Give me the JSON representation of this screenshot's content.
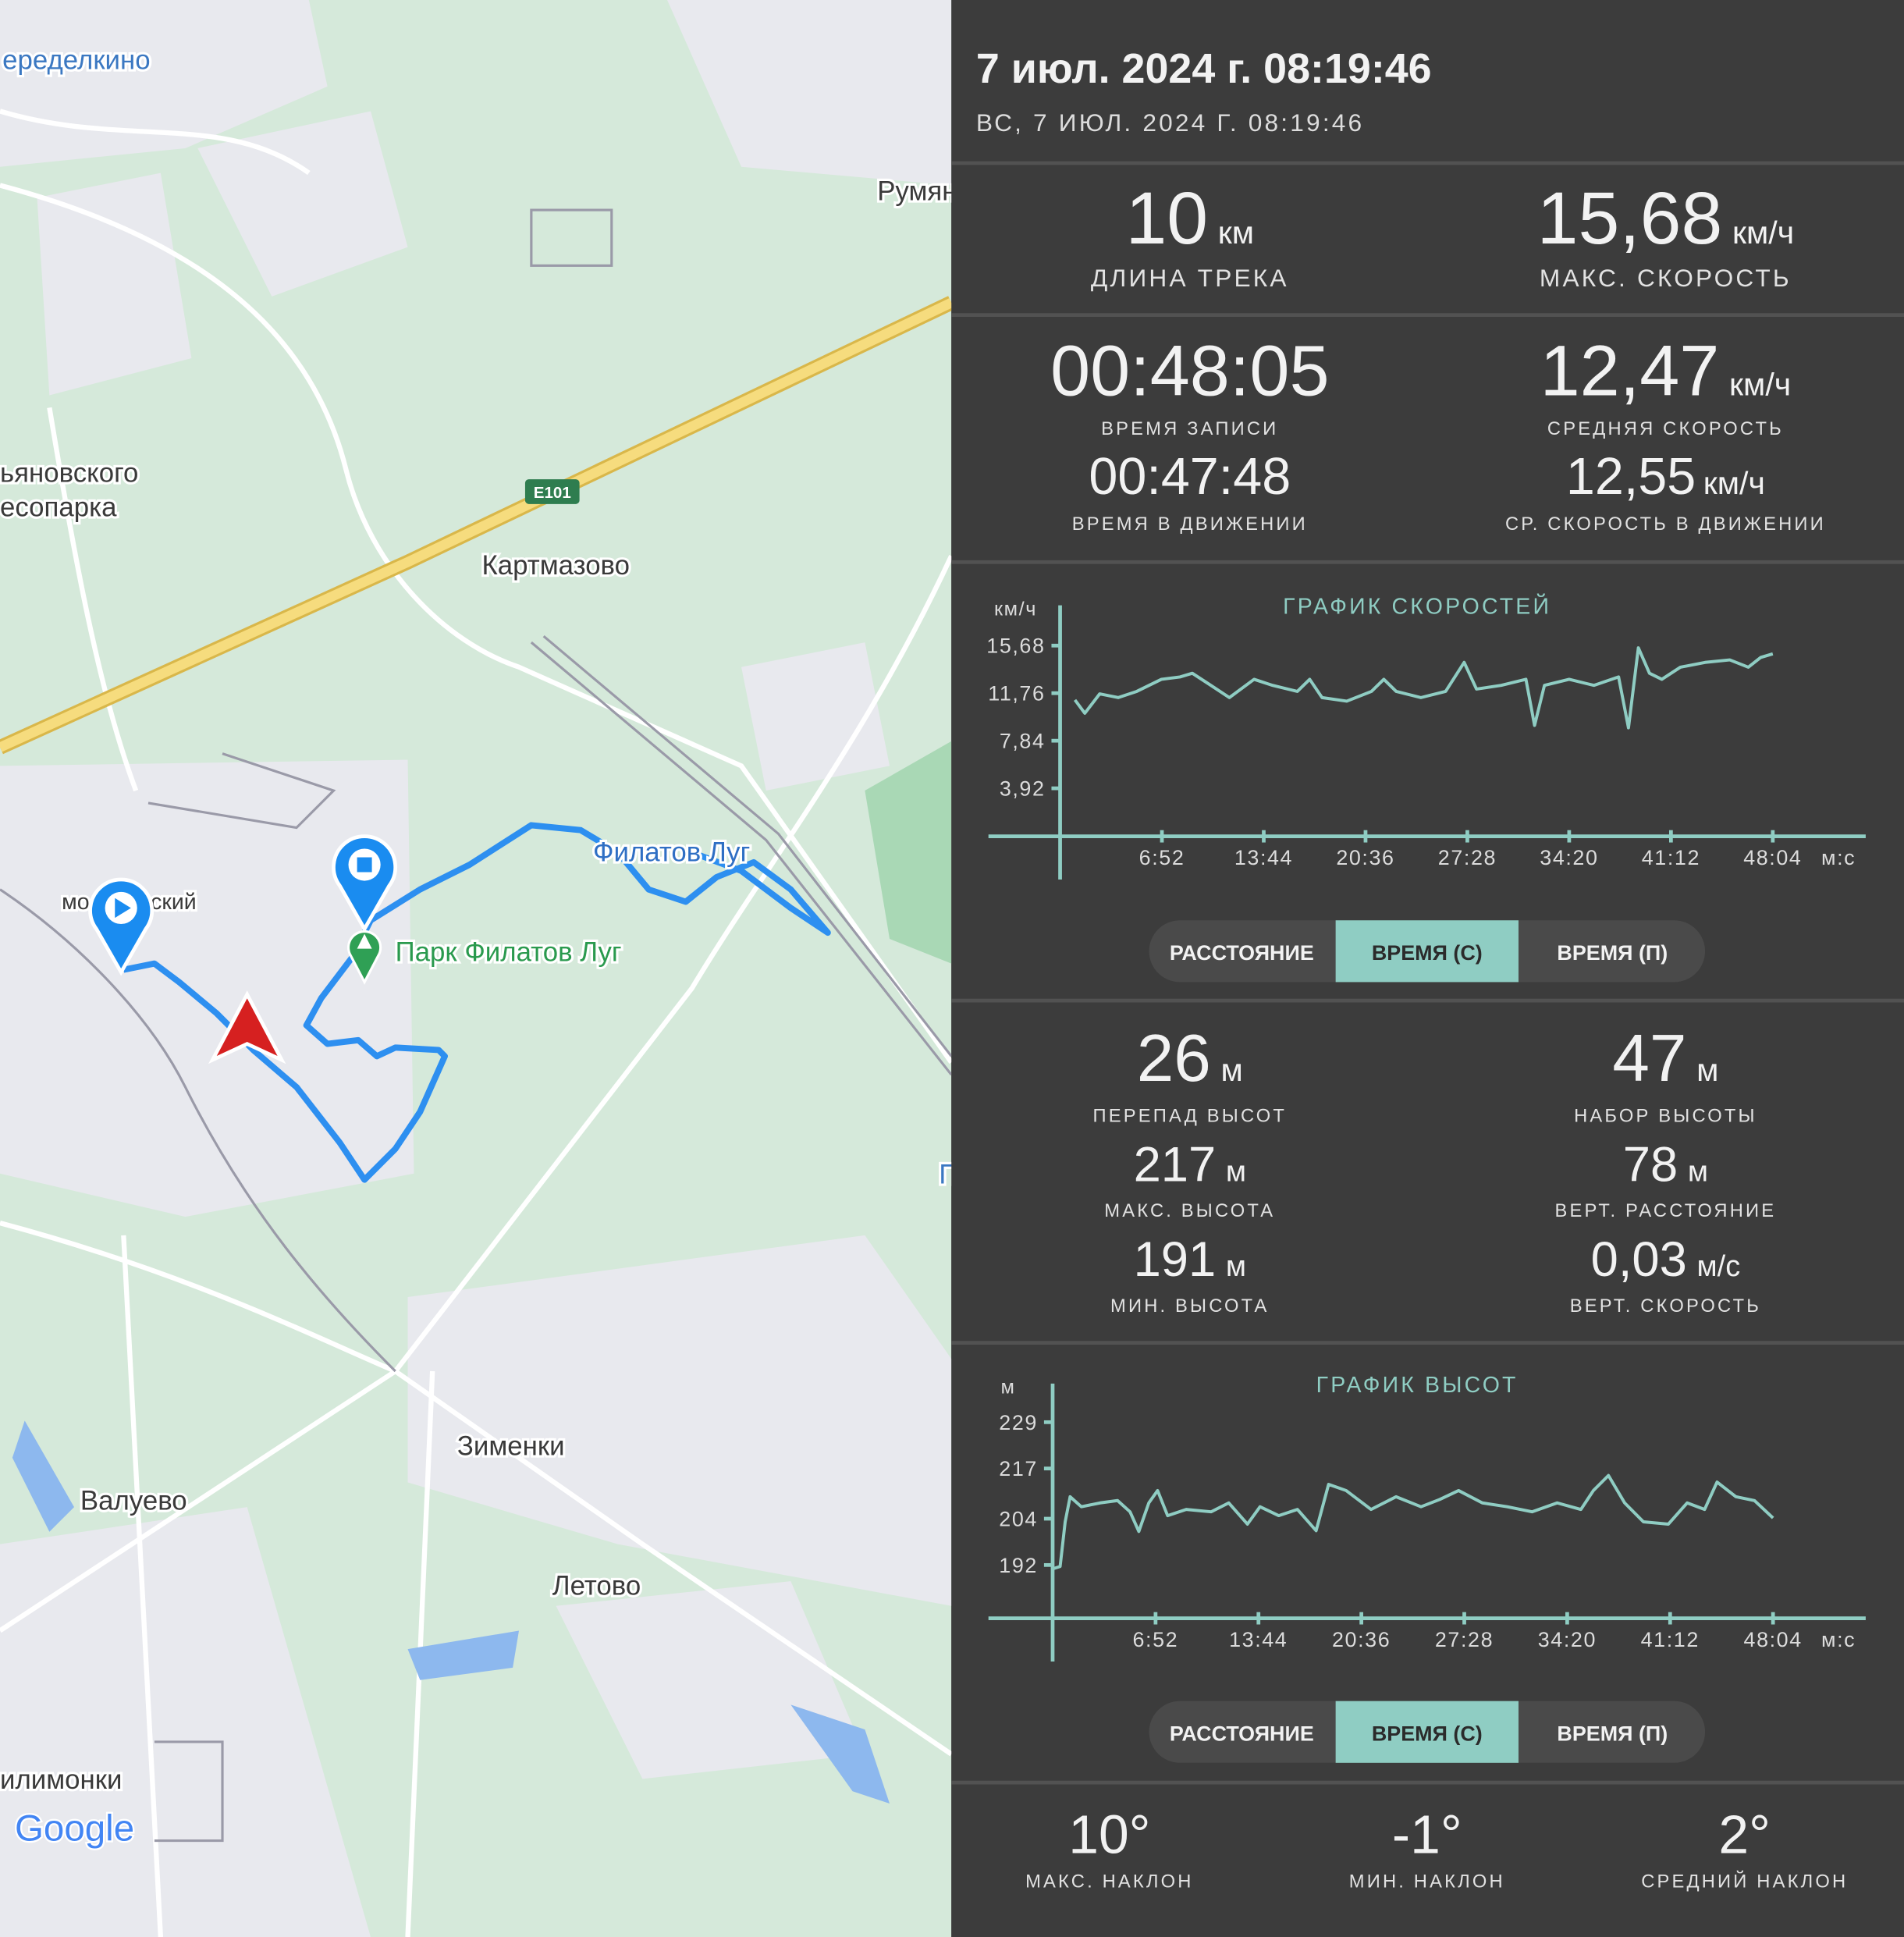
{
  "map": {
    "labels": [
      "еределкино",
      "Румян",
      "ьяновского",
      "есопарка",
      "Картмазово",
      "Филатов Луг",
      "мо",
      "ский",
      "Парк Филатов Луг",
      "Зименки",
      "Валуево",
      "Летово",
      "илимонки",
      "П"
    ],
    "highway": "E101",
    "logo": "Google"
  },
  "header": {
    "title": "7 июл. 2024 г. 08:19:46",
    "subtitle": "ВС, 7 ИЮЛ. 2024 Г. 08:19:46"
  },
  "track_stats": [
    {
      "value": "10",
      "unit": "км",
      "label": "ДЛИНА ТРЕКА"
    },
    {
      "value": "15,68",
      "unit": "км/ч",
      "label": "МАКС. СКОРОСТЬ"
    },
    {
      "value": "00:48:05",
      "label": "ВРЕМЯ ЗАПИСИ"
    },
    {
      "value": "12,47",
      "unit": "км/ч",
      "label": "СРЕДНЯЯ СКОРОСТЬ"
    },
    {
      "value": "00:47:48",
      "label": "ВРЕМЯ В ДВИЖЕНИИ"
    },
    {
      "value": "12,55",
      "unit": "км/ч",
      "label": "СР. СКОРОСТЬ В ДВИЖЕНИИ"
    }
  ],
  "speed_chart": {
    "type": "line",
    "title": "ГРАФИК СКОРОСТЕЙ",
    "y_unit": "км/ч",
    "x_unit": "м:с",
    "color": "#8fcdc3",
    "x": [
      60,
      100,
      160,
      235,
      310,
      410,
      485,
      535,
      610,
      685,
      785,
      860,
      960,
      1010,
      1060,
      1160,
      1260,
      1310,
      1360,
      1460,
      1560,
      1635,
      1685,
      1785,
      1885,
      1920,
      1960,
      2060,
      2160,
      2260,
      2300,
      2340,
      2385,
      2435,
      2510,
      2610,
      2710,
      2785,
      2835,
      2884
    ],
    "values": [
      11.2,
      10.1,
      11.7,
      11.4,
      11.9,
      12.9,
      13.1,
      13.4,
      12.4,
      11.4,
      12.9,
      12.4,
      11.9,
      12.9,
      11.4,
      11.1,
      11.9,
      12.9,
      11.9,
      11.4,
      11.9,
      14.3,
      12.1,
      12.4,
      12.9,
      9.1,
      12.4,
      12.9,
      12.4,
      13.1,
      8.9,
      15.5,
      13.4,
      12.9,
      13.9,
      14.3,
      14.5,
      13.9,
      14.7,
      15.0
    ],
    "xlim": [
      -290,
      3260
    ],
    "ylim": [
      -3.6,
      19
    ],
    "xticks": [
      {
        "value": 412,
        "label": "6:52"
      },
      {
        "value": 824,
        "label": "13:44"
      },
      {
        "value": 1236,
        "label": "20:36"
      },
      {
        "value": 1648,
        "label": "27:28"
      },
      {
        "value": 2060,
        "label": "34:20"
      },
      {
        "value": 2472,
        "label": "41:12"
      },
      {
        "value": 2884,
        "label": "48:04"
      }
    ],
    "yticks": [
      {
        "value": 3.92,
        "label": "3,92"
      },
      {
        "value": 7.84,
        "label": "7,84"
      },
      {
        "value": 11.76,
        "label": "11,76"
      },
      {
        "value": 15.68,
        "label": "15,68"
      }
    ],
    "tabs": [
      "РАССТОЯНИЕ",
      "ВРЕМЯ (С)",
      "ВРЕМЯ (П)"
    ],
    "active_tab": 1
  },
  "elevation_stats": [
    {
      "value": "26",
      "unit": "м",
      "label": "ПЕРЕПАД ВЫСОТ"
    },
    {
      "value": "47",
      "unit": "м",
      "label": "НАБОР ВЫСОТЫ"
    },
    {
      "value": "217",
      "unit": "м",
      "label": "МАКС. ВЫСОТА"
    },
    {
      "value": "78",
      "unit": "м",
      "label": "ВЕРТ. РАССТОЯНИЕ"
    },
    {
      "value": "191",
      "unit": "м",
      "label": "МИН. ВЫСОТА"
    },
    {
      "value": "0,03",
      "unit": "м/с",
      "label": "ВЕРТ. СКОРОСТЬ"
    }
  ],
  "elevation_chart": {
    "type": "line",
    "title": "ГРАФИК ВЫСОТ",
    "y_unit": "м",
    "x_unit": "м:с",
    "color": "#8fcdc3",
    "x": [
      0,
      30,
      50,
      70,
      115,
      190,
      260,
      310,
      345,
      385,
      420,
      460,
      535,
      635,
      705,
      780,
      830,
      905,
      980,
      1055,
      1105,
      1175,
      1275,
      1375,
      1475,
      1550,
      1625,
      1720,
      1820,
      1920,
      2020,
      2115,
      2165,
      2225,
      2290,
      2365,
      2465,
      2540,
      2610,
      2660,
      2735,
      2810,
      2884
    ],
    "values": [
      191,
      191.6,
      203.2,
      209.7,
      207.1,
      208.1,
      208.7,
      205.8,
      200.7,
      208.1,
      211.3,
      204.8,
      206.4,
      205.8,
      208.1,
      202.6,
      207.1,
      204.8,
      206.4,
      200.9,
      212.9,
      211.3,
      206.4,
      209.7,
      207.1,
      209.0,
      211.3,
      208.1,
      207.1,
      205.8,
      208.1,
      206.4,
      211.3,
      215.2,
      208.1,
      203.2,
      202.6,
      208.1,
      206.4,
      213.5,
      209.7,
      208.7,
      204.2
    ],
    "xlim": [
      -257,
      3255
    ],
    "ylim": [
      167,
      239
    ],
    "xticks": [
      {
        "value": 412,
        "label": "6:52"
      },
      {
        "value": 824,
        "label": "13:44"
      },
      {
        "value": 1236,
        "label": "20:36"
      },
      {
        "value": 1648,
        "label": "27:28"
      },
      {
        "value": 2060,
        "label": "34:20"
      },
      {
        "value": 2472,
        "label": "41:12"
      },
      {
        "value": 2884,
        "label": "48:04"
      }
    ],
    "yticks": [
      192,
      204,
      217,
      229
    ],
    "tabs": [
      "РАССТОЯНИЕ",
      "ВРЕМЯ (С)",
      "ВРЕМЯ (П)"
    ],
    "active_tab": 1
  },
  "slope_stats": [
    {
      "value": "10°",
      "label": "МАКС. НАКЛОН"
    },
    {
      "value": "-1°",
      "label": "МИН. НАКЛОН"
    },
    {
      "value": "2°",
      "label": "СРЕДНИЙ НАКЛОН"
    }
  ]
}
